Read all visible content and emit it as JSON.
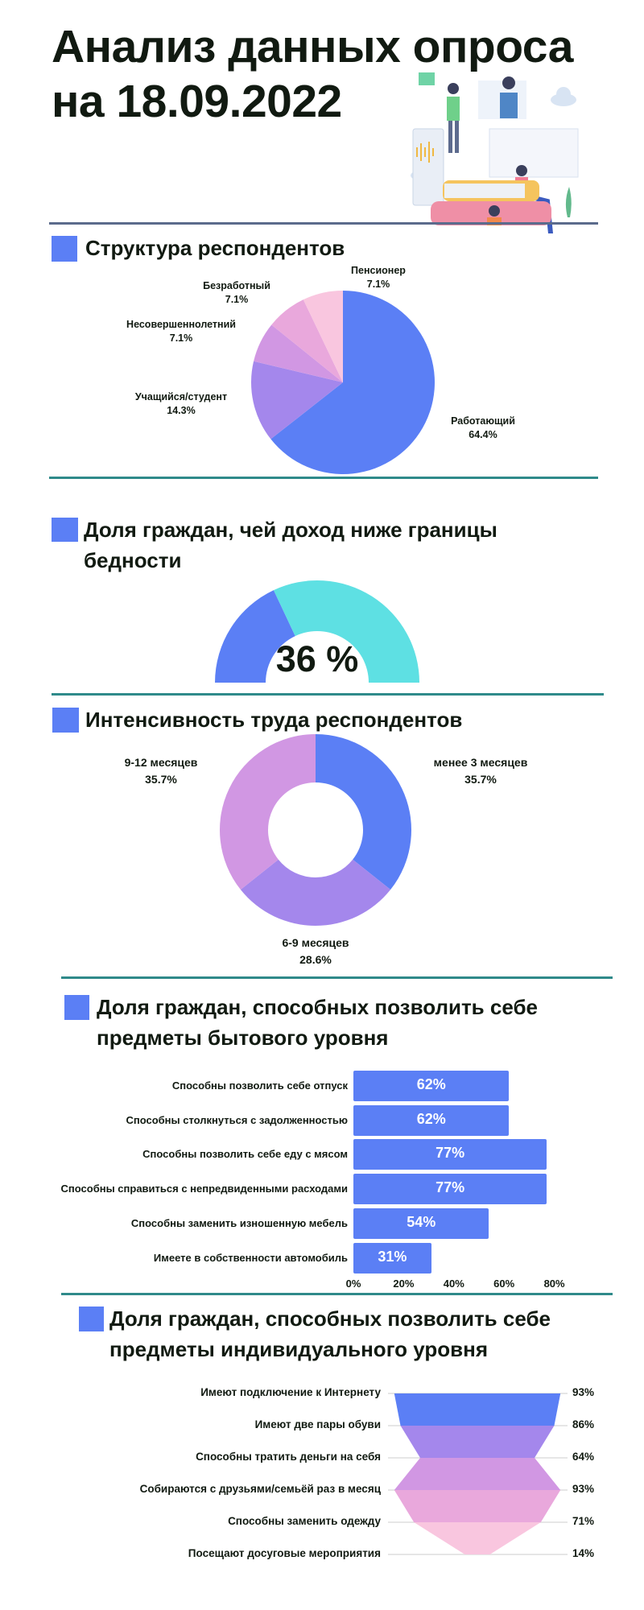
{
  "header": {
    "title_line1": "Анализ данных опроса",
    "title_line2": "на 18.09.2022"
  },
  "sections": {
    "structure": "Структура респондентов",
    "poverty_line1": "Доля граждан, чей доход ниже границы",
    "poverty_line2": "бедности",
    "intensity": "Интенсивность труда респондентов",
    "household_line1": "Доля граждан, способных позволить себе",
    "household_line2": "предметы бытового уровня",
    "individual_line1": "Доля граждан, способных позволить себе",
    "individual_line2": "предметы индивидуального уровня"
  },
  "colors": {
    "accent": "#5b7ff5",
    "purple": "#a487ec",
    "orchid": "#d197e3",
    "pink": "#e9a8dc",
    "light_pink": "#f9c6df",
    "cyan": "#5ee0e3",
    "divider_top": "#5b6b8c",
    "divider": "#2f8a8a"
  },
  "chart_data": [
    {
      "type": "pie",
      "title": "Структура респондентов",
      "categories": [
        "Работающий",
        "Учащийся/студент",
        "Несовершеннолетний",
        "Безработный",
        "Пенсионер"
      ],
      "values": [
        64.4,
        14.3,
        7.1,
        7.1,
        7.1
      ],
      "value_labels": [
        "64.4%",
        "14.3%",
        "7.1%",
        "7.1%",
        "7.1%"
      ]
    },
    {
      "type": "gauge",
      "title": "Доля граждан, чей доход ниже границы бедности",
      "value": 36,
      "max": 100,
      "value_label": "36 %"
    },
    {
      "type": "pie",
      "subtype": "donut",
      "title": "Интенсивность труда респондентов",
      "categories": [
        "менее 3 месяцев",
        "6-9 месяцев",
        "9-12 месяцев"
      ],
      "values": [
        35.7,
        28.6,
        35.7
      ],
      "value_labels": [
        "35.7%",
        "28.6%",
        "35.7%"
      ]
    },
    {
      "type": "bar",
      "orientation": "horizontal",
      "title": "Доля граждан, способных позволить себе предметы бытового уровня",
      "categories": [
        "Способны позволить себе отпуск",
        "Способны столкнуться с задолженностью",
        "Способны позволить себе еду с мясом",
        "Способны справиться с непредвиденными расходами",
        "Способны заменить изношенную мебель",
        "Имеете в собственности автомобиль"
      ],
      "values": [
        62,
        62,
        77,
        77,
        54,
        31
      ],
      "value_labels": [
        "62%",
        "62%",
        "77%",
        "77%",
        "54%",
        "31%"
      ],
      "xlim": [
        0,
        80
      ],
      "xticks": [
        "0%",
        "20%",
        "40%",
        "60%",
        "80%"
      ]
    },
    {
      "type": "funnel",
      "title": "Доля граждан, способных позволить себе предметы индивидуального уровня",
      "categories": [
        "Имеют подключение к Интернету",
        "Имеют две пары обуви",
        "Способны тратить деньги на себя",
        "Собираются с друзьями/семьёй раз в месяц",
        "Способны заменить одежду",
        "Посещают досуговые мероприятия"
      ],
      "values": [
        93,
        86,
        64,
        93,
        71,
        14
      ],
      "value_labels": [
        "93%",
        "86%",
        "64%",
        "93%",
        "71%",
        "14%"
      ]
    }
  ]
}
